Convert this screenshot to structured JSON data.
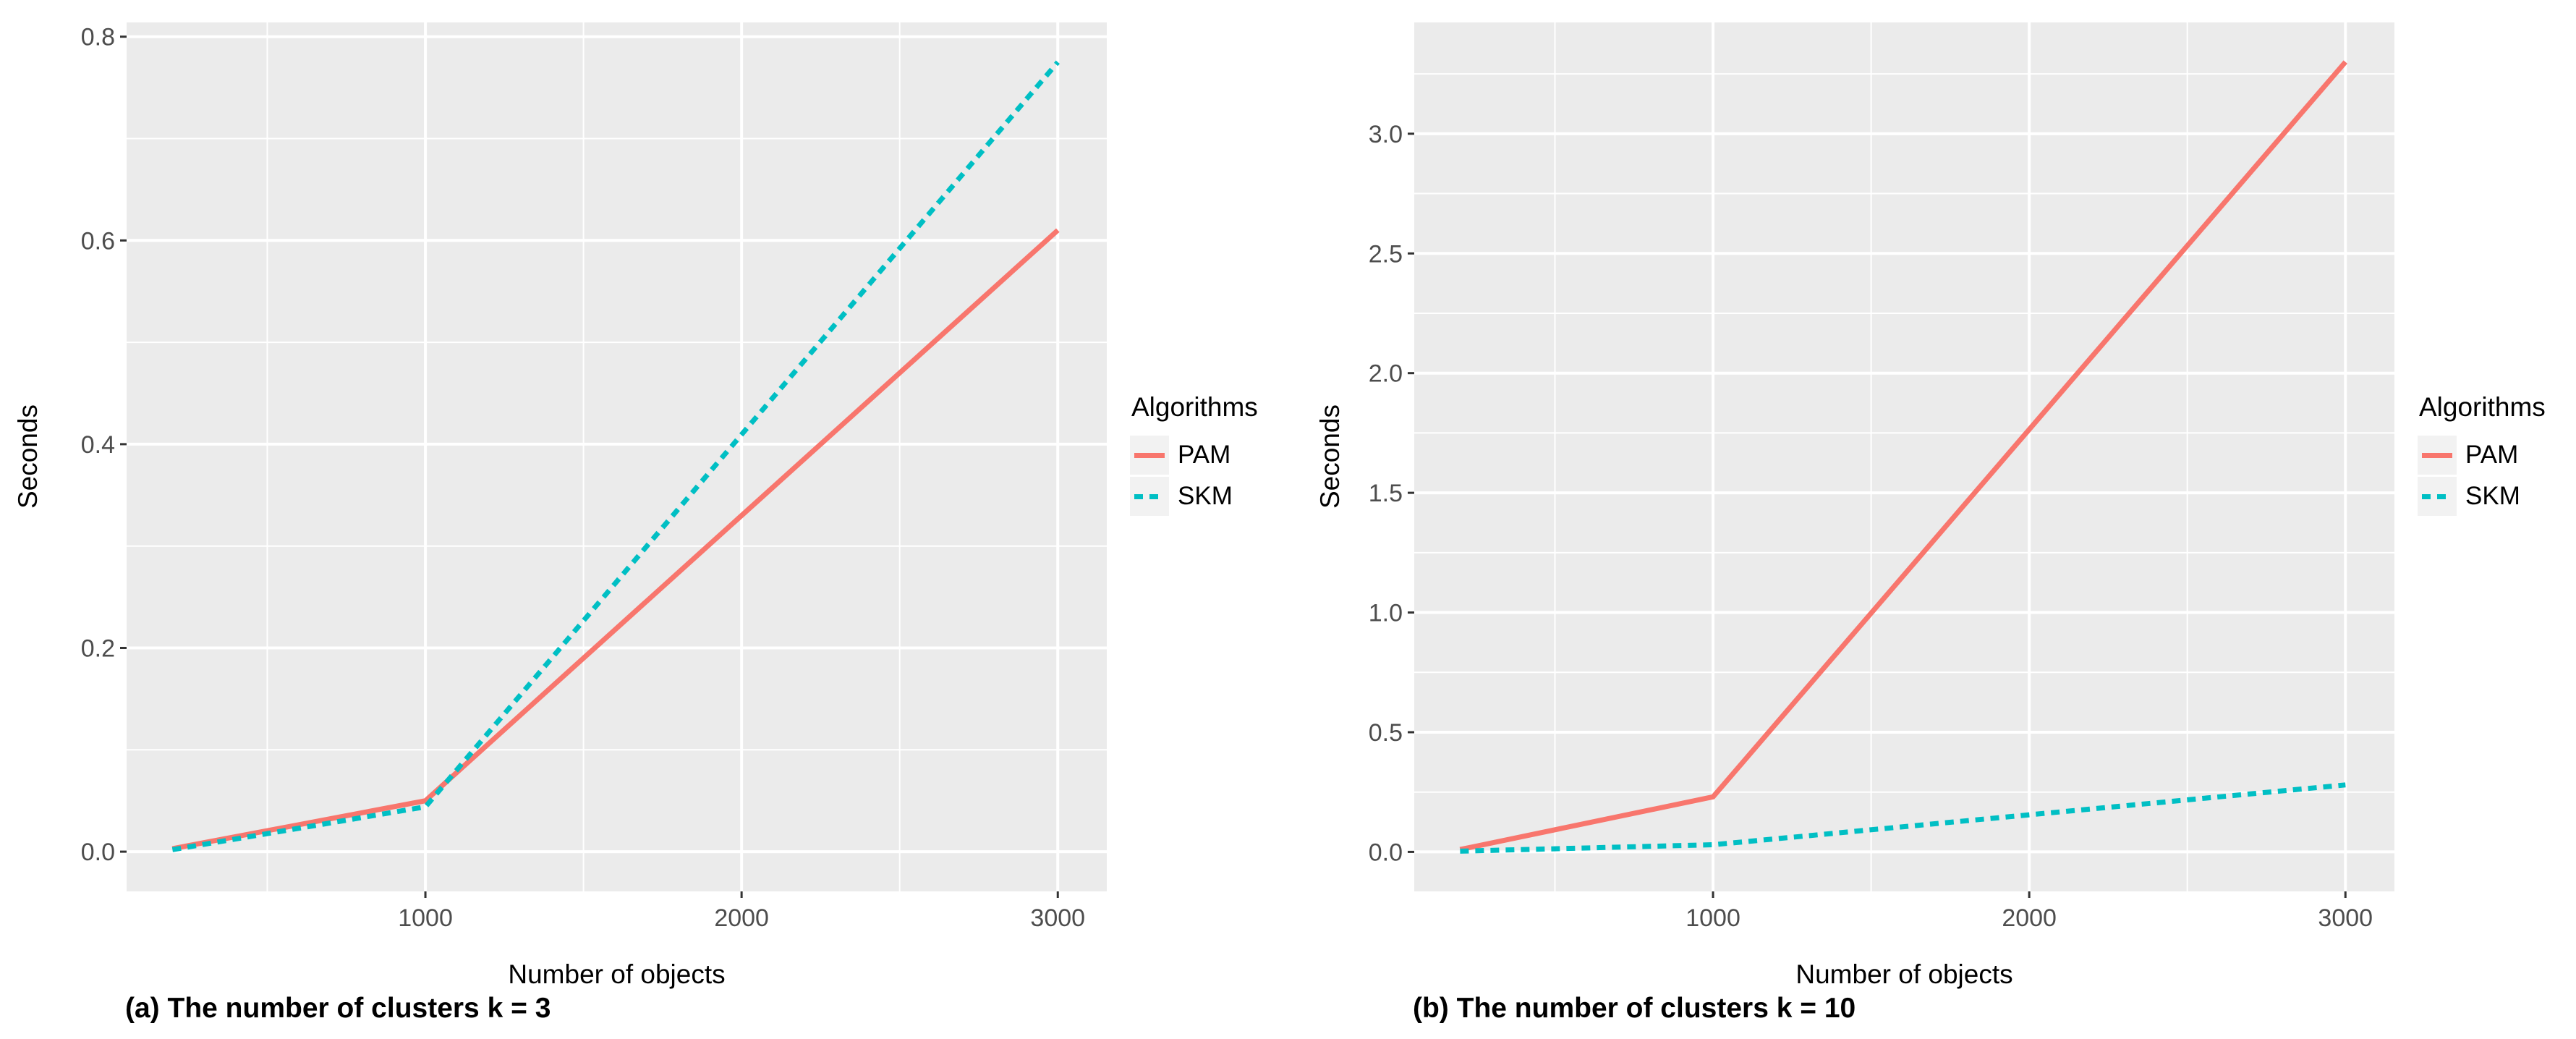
{
  "figure": {
    "background": "#FFFFFF",
    "panel_bg": "#EBEBEB",
    "grid_color": "#FFFFFF",
    "tick_mark_color": "#333333",
    "tick_label_color": "#4D4D4D"
  },
  "legend": {
    "key_bg": "#F2F2F2"
  },
  "chart_data": [
    {
      "type": "line",
      "caption": "(a) The number of clusters k = 3",
      "xlabel": "Number of objects",
      "ylabel": "Seconds",
      "legend_title": "Algorithms",
      "legend_position": "right",
      "grid": true,
      "x": [
        200,
        1000,
        3000
      ],
      "series": [
        {
          "name": "PAM",
          "color": "#F8766D",
          "linestyle": "solid",
          "values": [
            0.003,
            0.05,
            0.61
          ]
        },
        {
          "name": "SKM",
          "color": "#00BFC4",
          "linestyle": "dashed",
          "values": [
            0.002,
            0.044,
            0.775
          ]
        }
      ],
      "x_range": [
        55,
        3155
      ],
      "y_range": [
        -0.039,
        0.814
      ],
      "x_ticks": [
        1000,
        2000,
        3000
      ],
      "x_tick_labels": [
        "1000",
        "2000",
        "3000"
      ],
      "x_minor": [
        500,
        1500,
        2500
      ],
      "y_ticks": [
        0,
        0.2,
        0.4,
        0.6,
        0.8
      ],
      "y_tick_labels": [
        "0.0",
        "0.2",
        "0.4",
        "0.6",
        "0.8"
      ],
      "y_minor": [
        0.1,
        0.3,
        0.5,
        0.7
      ]
    },
    {
      "type": "line",
      "caption": "(b) The number of clusters k = 10",
      "xlabel": "Number of objects",
      "ylabel": "Seconds",
      "legend_title": "Algorithms",
      "legend_position": "right",
      "grid": true,
      "x": [
        200,
        1000,
        3000
      ],
      "series": [
        {
          "name": "PAM",
          "color": "#F8766D",
          "linestyle": "solid",
          "values": [
            0.01,
            0.23,
            3.3
          ]
        },
        {
          "name": "SKM",
          "color": "#00BFC4",
          "linestyle": "dashed",
          "values": [
            0.003,
            0.03,
            0.28
          ]
        }
      ],
      "x_range": [
        55,
        3155
      ],
      "y_range": [
        -0.165,
        3.465
      ],
      "x_ticks": [
        1000,
        2000,
        3000
      ],
      "x_tick_labels": [
        "1000",
        "2000",
        "3000"
      ],
      "x_minor": [
        500,
        1500,
        2500
      ],
      "y_ticks": [
        0,
        0.5,
        1.0,
        1.5,
        2.0,
        2.5,
        3.0
      ],
      "y_tick_labels": [
        "0.0",
        "0.5",
        "1.0",
        "1.5",
        "2.0",
        "2.5",
        "3.0"
      ],
      "y_minor": [
        0.25,
        0.75,
        1.25,
        1.75,
        2.25,
        2.75,
        3.25
      ]
    }
  ]
}
